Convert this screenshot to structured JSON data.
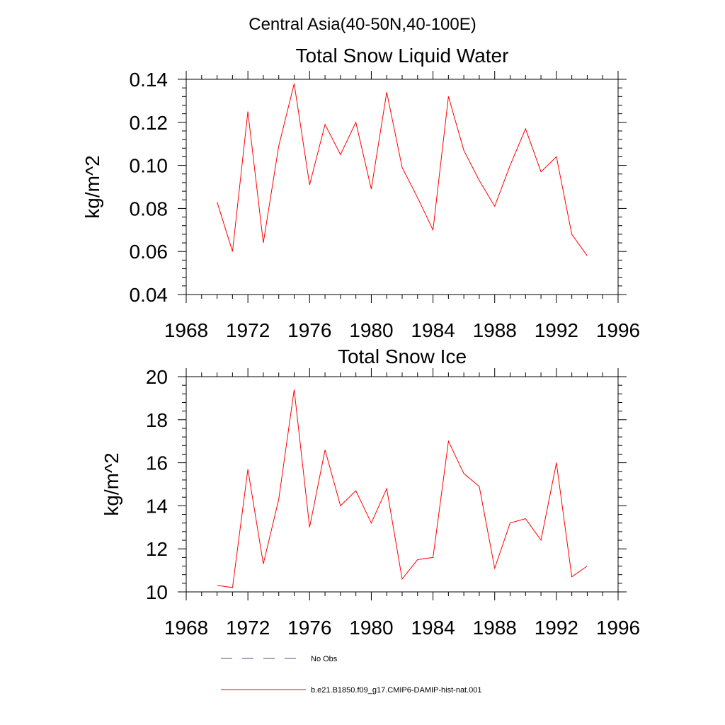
{
  "page": {
    "main_title": "Central Asia(40-50N,40-100E)"
  },
  "chart_data": [
    {
      "type": "line",
      "title": "Total Snow Liquid Water",
      "xlabel": "",
      "ylabel": "kg/m^2",
      "xlim": [
        1968,
        1996
      ],
      "ylim": [
        0.04,
        0.14
      ],
      "xticks": [
        1968,
        1972,
        1976,
        1980,
        1984,
        1988,
        1992,
        1996
      ],
      "xtick_labels": [
        "1968",
        "1972",
        "1976",
        "1980",
        "1984",
        "1988",
        "1992",
        "1996"
      ],
      "yticks": [
        0.04,
        0.06,
        0.08,
        0.1,
        0.12,
        0.14
      ],
      "ytick_labels": [
        "0.04",
        "0.06",
        "0.08",
        "0.10",
        "0.12",
        "0.14"
      ],
      "grid": false,
      "series": [
        {
          "name": "b.e21.B1850.f09_g17.CMIP6-DAMIP-hist-nat.001",
          "color": "#ff0000",
          "x": [
            1970,
            1971,
            1972,
            1973,
            1974,
            1975,
            1976,
            1977,
            1978,
            1979,
            1980,
            1981,
            1982,
            1983,
            1984,
            1985,
            1986,
            1987,
            1988,
            1989,
            1990,
            1991,
            1992,
            1993,
            1994
          ],
          "y": [
            0.083,
            0.06,
            0.125,
            0.064,
            0.109,
            0.138,
            0.091,
            0.119,
            0.105,
            0.12,
            0.089,
            0.134,
            0.099,
            0.085,
            0.07,
            0.132,
            0.107,
            0.093,
            0.081,
            0.1,
            0.117,
            0.097,
            0.104,
            0.068,
            0.058
          ]
        }
      ]
    },
    {
      "type": "line",
      "title": "Total Snow Ice",
      "xlabel": "",
      "ylabel": "kg/m^2",
      "xlim": [
        1968,
        1996
      ],
      "ylim": [
        10,
        20
      ],
      "xticks": [
        1968,
        1972,
        1976,
        1980,
        1984,
        1988,
        1992,
        1996
      ],
      "xtick_labels": [
        "1968",
        "1972",
        "1976",
        "1980",
        "1984",
        "1988",
        "1992",
        "1996"
      ],
      "yticks": [
        10,
        12,
        14,
        16,
        18,
        20
      ],
      "ytick_labels": [
        "10",
        "12",
        "14",
        "16",
        "18",
        "20"
      ],
      "grid": false,
      "series": [
        {
          "name": "b.e21.B1850.f09_g17.CMIP6-DAMIP-hist-nat.001",
          "color": "#ff0000",
          "x": [
            1970,
            1971,
            1972,
            1973,
            1974,
            1975,
            1976,
            1977,
            1978,
            1979,
            1980,
            1981,
            1982,
            1983,
            1984,
            1985,
            1986,
            1987,
            1988,
            1989,
            1990,
            1991,
            1992,
            1993,
            1994
          ],
          "y": [
            10.3,
            10.2,
            15.7,
            11.3,
            14.3,
            19.4,
            13.0,
            16.6,
            14.0,
            14.7,
            13.2,
            14.8,
            10.6,
            11.5,
            11.6,
            17.0,
            15.5,
            14.9,
            11.1,
            13.2,
            13.4,
            12.4,
            16.0,
            10.7,
            11.2
          ]
        }
      ]
    }
  ],
  "legend": {
    "placement": "bottom",
    "items": [
      {
        "label": "No Obs",
        "color": "#4a4a8a",
        "style": "dashed"
      },
      {
        "label": "b.e21.B1850.f09_g17.CMIP6-DAMIP-hist-nat.001",
        "color": "#ff0000",
        "style": "solid"
      }
    ]
  }
}
